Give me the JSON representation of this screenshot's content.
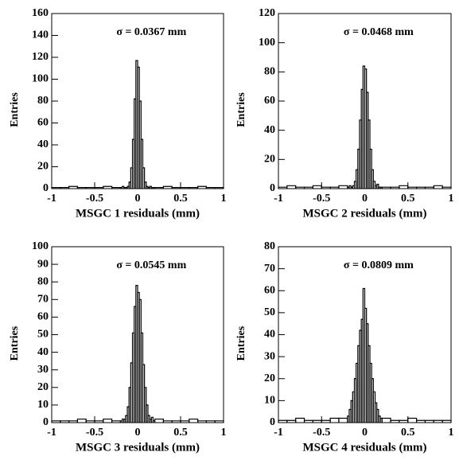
{
  "chart_data": [
    {
      "type": "histogram",
      "annotation": "σ = 0.0367 mm",
      "xlabel": "MSGC 1 residuals (mm)",
      "ylabel": "Entries",
      "color": "#000000",
      "bins": [
        -1,
        -0.9,
        -0.8,
        -0.7,
        -0.6,
        -0.5,
        -0.4,
        -0.3,
        -0.2,
        -0.18,
        -0.16,
        -0.14,
        -0.12,
        -0.1,
        -0.08,
        -0.06,
        -0.04,
        -0.02,
        0,
        0.02,
        0.04,
        0.06,
        0.08,
        0.1,
        0.12,
        0.14,
        0.16,
        0.18,
        0.2,
        0.3,
        0.4,
        0.5,
        0.6,
        0.7,
        0.8,
        0.9,
        1
      ],
      "counts": [
        1,
        1,
        2,
        1,
        1,
        1,
        2,
        1,
        1,
        2,
        1,
        1,
        2,
        6,
        19,
        45,
        82,
        117,
        111,
        80,
        45,
        19,
        6,
        2,
        1,
        2,
        1,
        1,
        1,
        2,
        1,
        1,
        1,
        2,
        1,
        1
      ],
      "xlim": [
        -1,
        1
      ],
      "ylim": [
        0,
        160
      ],
      "xticks": [
        -1,
        -0.5,
        0,
        0.5,
        1
      ],
      "yticks": [
        0,
        20,
        40,
        60,
        80,
        100,
        120,
        140,
        160
      ]
    },
    {
      "type": "histogram",
      "annotation": "σ = 0.0468 mm",
      "xlabel": "MSGC 2 residuals (mm)",
      "ylabel": "Entries",
      "color": "#000000",
      "bins": [
        -1,
        -0.9,
        -0.8,
        -0.7,
        -0.6,
        -0.5,
        -0.4,
        -0.3,
        -0.2,
        -0.18,
        -0.16,
        -0.14,
        -0.12,
        -0.1,
        -0.08,
        -0.06,
        -0.04,
        -0.02,
        0,
        0.02,
        0.04,
        0.06,
        0.08,
        0.1,
        0.12,
        0.14,
        0.16,
        0.18,
        0.2,
        0.3,
        0.4,
        0.5,
        0.6,
        0.7,
        0.8,
        0.9,
        1
      ],
      "counts": [
        1,
        2,
        1,
        1,
        2,
        1,
        1,
        2,
        1,
        2,
        1,
        2,
        5,
        13,
        27,
        47,
        68,
        84,
        82,
        66,
        47,
        27,
        13,
        5,
        2,
        3,
        1,
        1,
        1,
        1,
        2,
        1,
        1,
        1,
        2,
        1
      ],
      "xlim": [
        -1,
        1
      ],
      "ylim": [
        0,
        120
      ],
      "xticks": [
        -1,
        -0.5,
        0,
        0.5,
        1
      ],
      "yticks": [
        0,
        20,
        40,
        60,
        80,
        100,
        120
      ]
    },
    {
      "type": "histogram",
      "annotation": "σ = 0.0545 mm",
      "xlabel": "MSGC 3 residuals (mm)",
      "ylabel": "Entries",
      "color": "#000000",
      "bins": [
        -1,
        -0.9,
        -0.8,
        -0.7,
        -0.6,
        -0.5,
        -0.4,
        -0.3,
        -0.2,
        -0.18,
        -0.16,
        -0.14,
        -0.12,
        -0.1,
        -0.08,
        -0.06,
        -0.04,
        -0.02,
        0,
        0.02,
        0.04,
        0.06,
        0.08,
        0.1,
        0.12,
        0.14,
        0.16,
        0.18,
        0.2,
        0.3,
        0.4,
        0.5,
        0.6,
        0.7,
        0.8,
        0.9,
        1
      ],
      "counts": [
        1,
        1,
        1,
        2,
        1,
        1,
        2,
        1,
        1,
        2,
        2,
        4,
        9,
        20,
        34,
        51,
        66,
        78,
        74,
        70,
        51,
        33,
        20,
        10,
        4,
        2,
        3,
        1,
        2,
        1,
        1,
        1,
        2,
        1,
        1,
        1
      ],
      "xlim": [
        -1,
        1
      ],
      "ylim": [
        0,
        100
      ],
      "xticks": [
        -1,
        -0.5,
        0,
        0.5,
        1
      ],
      "yticks": [
        0,
        10,
        20,
        30,
        40,
        50,
        60,
        70,
        80,
        90,
        100
      ]
    },
    {
      "type": "histogram",
      "annotation": "σ = 0.0809 mm",
      "xlabel": "MSGC 4 residuals (mm)",
      "ylabel": "Entries",
      "color": "#000000",
      "bins": [
        -1,
        -0.9,
        -0.8,
        -0.7,
        -0.6,
        -0.5,
        -0.4,
        -0.3,
        -0.2,
        -0.18,
        -0.16,
        -0.14,
        -0.12,
        -0.1,
        -0.08,
        -0.06,
        -0.04,
        -0.02,
        0,
        0.02,
        0.04,
        0.06,
        0.08,
        0.1,
        0.12,
        0.14,
        0.16,
        0.18,
        0.2,
        0.3,
        0.4,
        0.5,
        0.6,
        0.7,
        0.8,
        0.9,
        1
      ],
      "counts": [
        1,
        1,
        2,
        1,
        1,
        1,
        2,
        2,
        3,
        6,
        10,
        14,
        20,
        27,
        35,
        42,
        47,
        61,
        52,
        45,
        35,
        27,
        20,
        14,
        9,
        6,
        3,
        2,
        2,
        1,
        1,
        2,
        1,
        1,
        1,
        1
      ],
      "xlim": [
        -1,
        1
      ],
      "ylim": [
        0,
        80
      ],
      "xticks": [
        -1,
        -0.5,
        0,
        0.5,
        1
      ],
      "yticks": [
        0,
        10,
        20,
        30,
        40,
        50,
        60,
        70,
        80
      ]
    }
  ]
}
